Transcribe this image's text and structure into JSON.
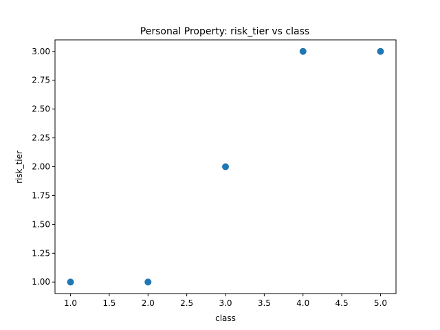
{
  "chart_data": {
    "type": "scatter",
    "title": "Personal Property: risk_tier vs class",
    "xlabel": "class",
    "ylabel": "risk_tier",
    "xlim": [
      0.8,
      5.2
    ],
    "ylim": [
      0.9,
      3.1
    ],
    "xticks": [
      1.0,
      1.5,
      2.0,
      2.5,
      3.0,
      3.5,
      4.0,
      4.5,
      5.0
    ],
    "xtick_labels": [
      "1.0",
      "1.5",
      "2.0",
      "2.5",
      "3.0",
      "3.5",
      "4.0",
      "4.5",
      "5.0"
    ],
    "yticks": [
      1.0,
      1.25,
      1.5,
      1.75,
      2.0,
      2.25,
      2.5,
      2.75,
      3.0
    ],
    "ytick_labels": [
      "1.00",
      "1.25",
      "1.50",
      "1.75",
      "2.00",
      "2.25",
      "2.50",
      "2.75",
      "3.00"
    ],
    "grid": false,
    "marker_color": "#1f77b4",
    "series": [
      {
        "x": [
          1,
          2,
          3,
          4,
          5
        ],
        "y": [
          1,
          1,
          2,
          3,
          3
        ]
      }
    ]
  }
}
